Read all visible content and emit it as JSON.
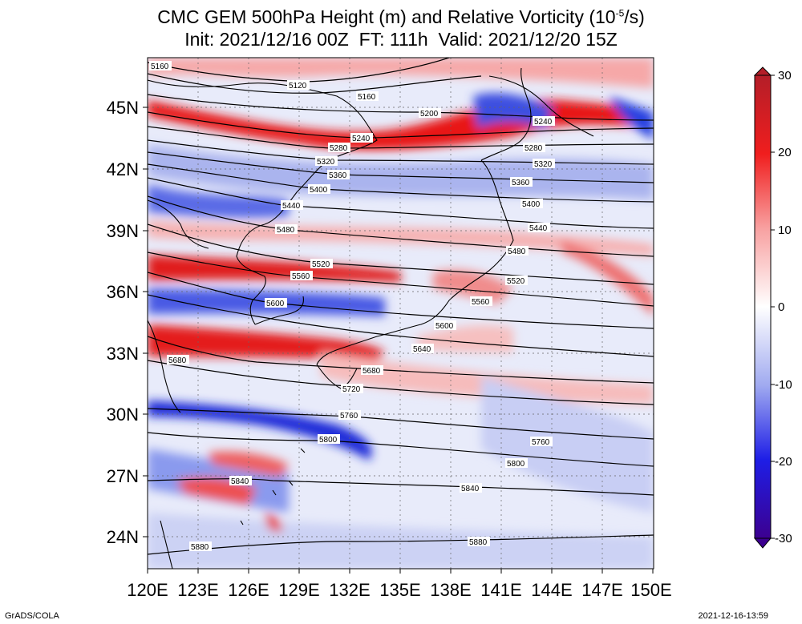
{
  "title": {
    "line1": "CMC GEM 500hPa Height (m) and Relative Vorticity (10",
    "line1_sup": "-5",
    "line1_end": "/s)",
    "line2": "Init: 2021/12/16 00Z  FT: 111h  Valid: 2021/12/20 15Z"
  },
  "map": {
    "lon_labels": [
      "120E",
      "123E",
      "126E",
      "129E",
      "132E",
      "135E",
      "138E",
      "141E",
      "144E",
      "147E",
      "150E"
    ],
    "lat_labels": [
      "45N",
      "42N",
      "39N",
      "36N",
      "33N",
      "30N",
      "27N",
      "24N"
    ],
    "height_contours": [
      {
        "label": "5120"
      },
      {
        "label": "5160"
      },
      {
        "label": "5200"
      },
      {
        "label": "5240"
      },
      {
        "label": "5280"
      },
      {
        "label": "5320"
      },
      {
        "label": "5360"
      },
      {
        "label": "5400"
      },
      {
        "label": "5440"
      },
      {
        "label": "5480"
      },
      {
        "label": "5520"
      },
      {
        "label": "5560"
      },
      {
        "label": "5600"
      },
      {
        "label": "5640"
      },
      {
        "label": "5680"
      },
      {
        "label": "5720"
      },
      {
        "label": "5760"
      },
      {
        "label": "5800"
      },
      {
        "label": "5840"
      },
      {
        "label": "5880"
      }
    ]
  },
  "colorbar": {
    "ticks": [
      "30",
      "20",
      "10",
      "0",
      "-10",
      "-20",
      "-30"
    ],
    "colors": {
      "strong_pos": "#c8141e",
      "pos": "#f03c3c",
      "weak_pos": "#f8b4b4",
      "zero": "#ffffff",
      "weak_neg": "#b4bef0",
      "neg": "#3c46e6",
      "strong_neg": "#3c0096"
    }
  },
  "footer": {
    "left": "GrADS/COLA",
    "right": "2021-12-16-13:59"
  }
}
